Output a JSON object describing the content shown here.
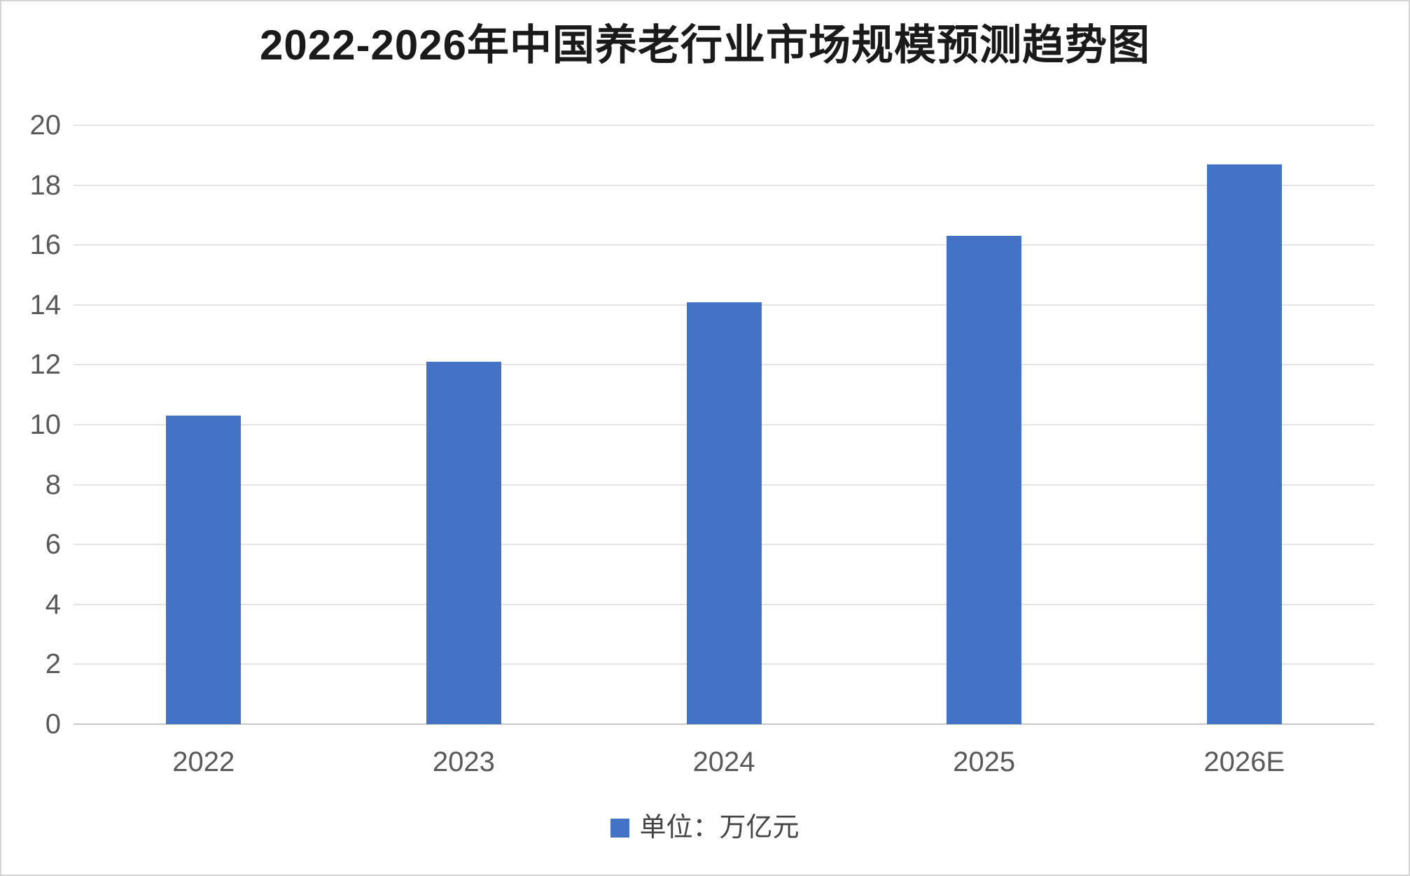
{
  "frame": {
    "background": "#ffffff",
    "border_color": "#d4d4d4"
  },
  "chart_data": {
    "type": "bar",
    "title": "2022-2026年中国养老行业市场规模预测趋势图",
    "categories": [
      "2022",
      "2023",
      "2024",
      "2025",
      "2026E"
    ],
    "values": [
      10.3,
      12.1,
      14.1,
      16.3,
      18.7
    ],
    "series": [
      {
        "name": "单位：万亿元",
        "values": [
          10.3,
          12.1,
          14.1,
          16.3,
          18.7
        ]
      }
    ],
    "xlabel": "",
    "ylabel": "",
    "ylim": [
      0,
      20
    ],
    "ytick_step": 2,
    "yticks": [
      0,
      2,
      4,
      6,
      8,
      10,
      12,
      14,
      16,
      18,
      20
    ],
    "grid": true,
    "legend": {
      "position": "bottom",
      "label": "单位：万亿元"
    },
    "colors": {
      "bar": "#4472C4",
      "axis_labels": "#595959",
      "gridline": "#e4e4e4",
      "baseline": "#c6c6c6",
      "title": "#1a1a1a",
      "legend_text": "#444444"
    }
  }
}
